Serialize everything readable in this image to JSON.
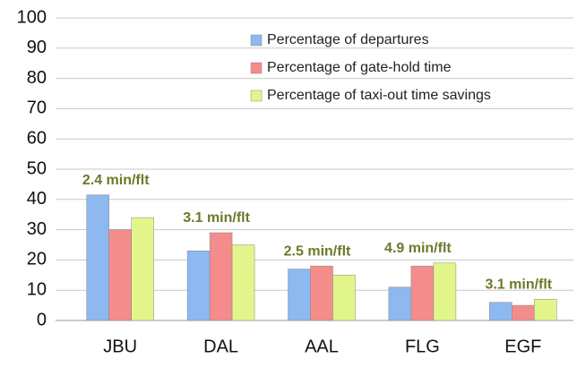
{
  "chart_data": {
    "type": "bar",
    "categories": [
      "JBU",
      "DAL",
      "AAL",
      "FLG",
      "EGF"
    ],
    "series": [
      {
        "name": "Percentage of departures",
        "color": "#8db8f0",
        "values": [
          41.5,
          23,
          17,
          11,
          6
        ]
      },
      {
        "name": "Percentage of gate-hold time",
        "color": "#f58c8c",
        "values": [
          30,
          29,
          18,
          18,
          5
        ]
      },
      {
        "name": "Percentage of taxi-out time savings",
        "color": "#e2f58a",
        "values": [
          34,
          25,
          15,
          19,
          7
        ]
      }
    ],
    "annotations": [
      "2.4 min/flt",
      "3.1 min/flt",
      "2.5 min/flt",
      "4.9 min/flt",
      "3.1 min/flt"
    ],
    "ylim": [
      0,
      100
    ],
    "yticks": [
      0,
      10,
      20,
      30,
      40,
      50,
      60,
      70,
      80,
      90,
      100
    ],
    "grid": true,
    "legend": "top-right"
  }
}
